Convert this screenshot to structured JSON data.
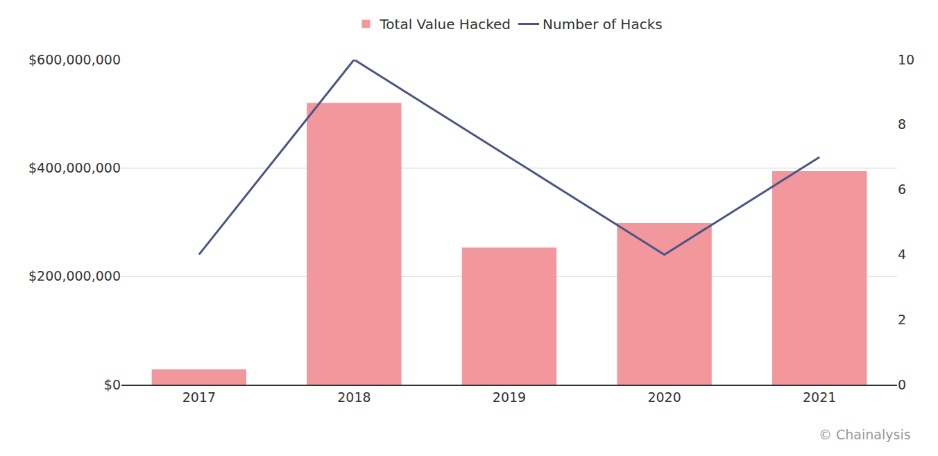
{
  "chart_data": {
    "type": "bar",
    "categories": [
      "2017",
      "2018",
      "2019",
      "2020",
      "2021"
    ],
    "series": [
      {
        "name": "Total Value Hacked",
        "type": "bar",
        "color": "#f2989c",
        "values": [
          28000000,
          520000000,
          253000000,
          298000000,
          394000000
        ]
      },
      {
        "name": "Number of Hacks",
        "type": "line",
        "color": "#4a5586",
        "axis": "y2",
        "values": [
          4,
          10,
          7,
          4,
          7
        ]
      }
    ],
    "ylim": [
      0,
      600000000
    ],
    "yticks": [
      {
        "value": 0,
        "label": "$0"
      },
      {
        "value": 200000000,
        "label": "$200,000,000"
      },
      {
        "value": 400000000,
        "label": "$400,000,000"
      },
      {
        "value": 600000000,
        "label": "$600,000,000"
      }
    ],
    "y2lim": [
      0,
      10
    ],
    "y2ticks": [
      0,
      2,
      4,
      6,
      8,
      10
    ],
    "grid": true,
    "legend": "top",
    "annotations": [
      "© Chainalysis"
    ]
  }
}
